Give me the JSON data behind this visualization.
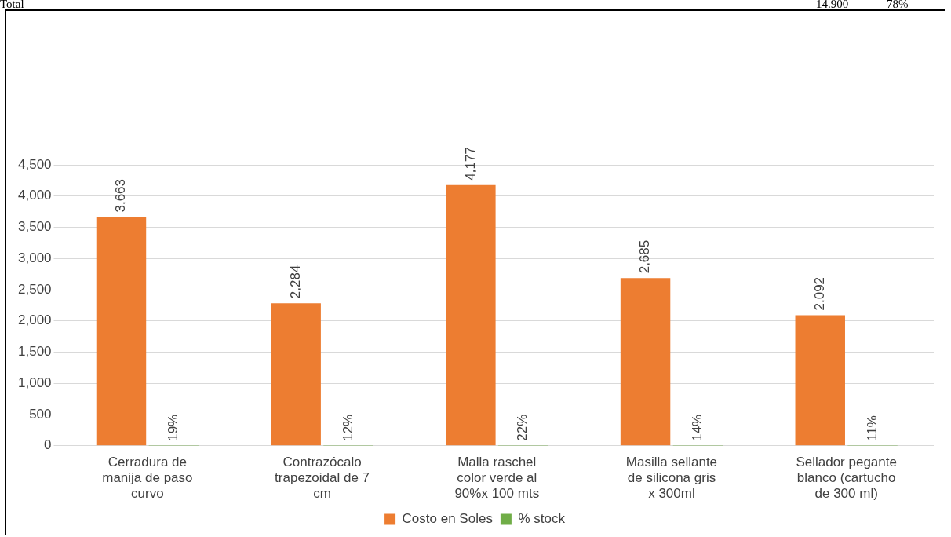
{
  "chart_data": {
    "type": "bar",
    "categories": [
      "Cerradura de manija de paso curvo",
      "Contrazócalo trapezoidal de 7 cm",
      "Malla raschel color verde al 90%x 100 mts",
      "Masilla sellante de silicona gris x 300ml",
      "Sellador pegante blanco (cartucho de 300 ml)"
    ],
    "series": [
      {
        "name": "Costo en Soles",
        "color": "#ed7d31",
        "values": [
          3663,
          2284,
          4177,
          2685,
          2092
        ],
        "value_labels": [
          "3,663",
          "2,284",
          "4,177",
          "2,685",
          "2,092"
        ]
      },
      {
        "name": "% stock",
        "color": "#70ad47",
        "values": [
          0.19,
          0.12,
          0.22,
          0.14,
          0.11
        ],
        "value_labels": [
          "19%",
          "12%",
          "22%",
          "14%",
          "11%"
        ]
      }
    ],
    "ylim": [
      0,
      4500
    ],
    "yticks": [
      {
        "value": 0,
        "label": "0"
      },
      {
        "value": 500,
        "label": "500"
      },
      {
        "value": 1000,
        "label": "1,000"
      },
      {
        "value": 1500,
        "label": "1,500"
      },
      {
        "value": 2000,
        "label": "2,000"
      },
      {
        "value": 2500,
        "label": "2,500"
      },
      {
        "value": 3000,
        "label": "3,000"
      },
      {
        "value": 3500,
        "label": "3,500"
      },
      {
        "value": 4000,
        "label": "4,000"
      },
      {
        "value": 4500,
        "label": "4,500"
      }
    ],
    "grid": "y",
    "legend": "bottom",
    "annotations": [
      "Total",
      "14.900",
      "78%"
    ]
  }
}
